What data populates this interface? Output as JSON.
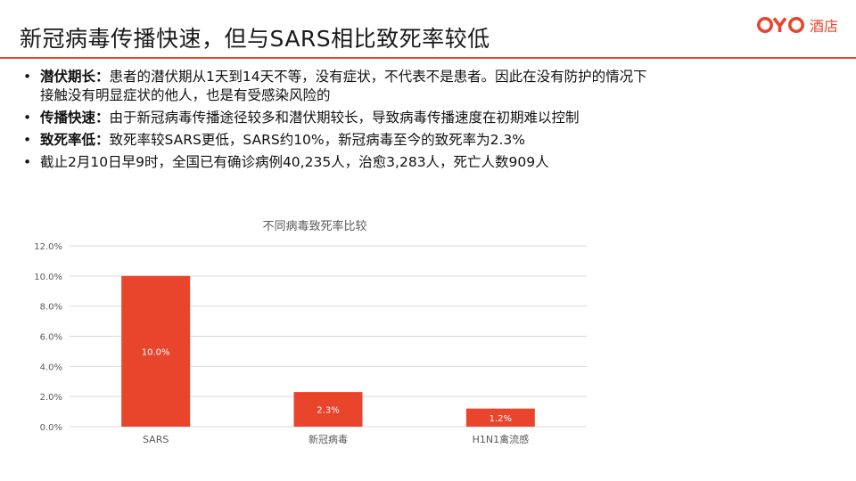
{
  "slide": {
    "title": "新冠病毒传播快速，但与SARS相比致死率较低"
  },
  "logo": {
    "brand": "OYO",
    "text": "酒店",
    "color": "#e8452c"
  },
  "bullets": [
    {
      "head": "潜伏期长：",
      "body": "患者的潜伏期从1天到14天不等，没有症状，不代表不是患者。因此在没有防护的情况下接触没有明显症状的他人，也是有受感染风险的"
    },
    {
      "head": "传播快速：",
      "body": "由于新冠病毒传播途径较多和潜伏期较长，导致病毒传播速度在初期难以控制"
    },
    {
      "head": "致死率低：",
      "body": "致死率较SARS更低，SARS约10%，新冠病毒至今的致死率为2.3%"
    },
    {
      "head": "",
      "body": "截止2月10日早9时，全国已有确诊病例40,235人，治愈3,283人，死亡人数909人"
    }
  ],
  "chart_data": {
    "type": "bar",
    "title": "不同病毒致死率比较",
    "categories": [
      "SARS",
      "新冠病毒",
      "H1N1禽流感"
    ],
    "values": [
      10.0,
      2.3,
      1.2
    ],
    "data_labels": [
      "10.0%",
      "2.3%",
      "1.2%"
    ],
    "y_ticks": [
      "0.0%",
      "2.0%",
      "4.0%",
      "6.0%",
      "8.0%",
      "10.0%",
      "12.0%"
    ],
    "ylim": [
      0,
      12
    ],
    "xlabel": "",
    "ylabel": "",
    "grid": true,
    "legend": "none",
    "bar_color": "#e8452c",
    "grid_color": "#d9d9d9"
  }
}
